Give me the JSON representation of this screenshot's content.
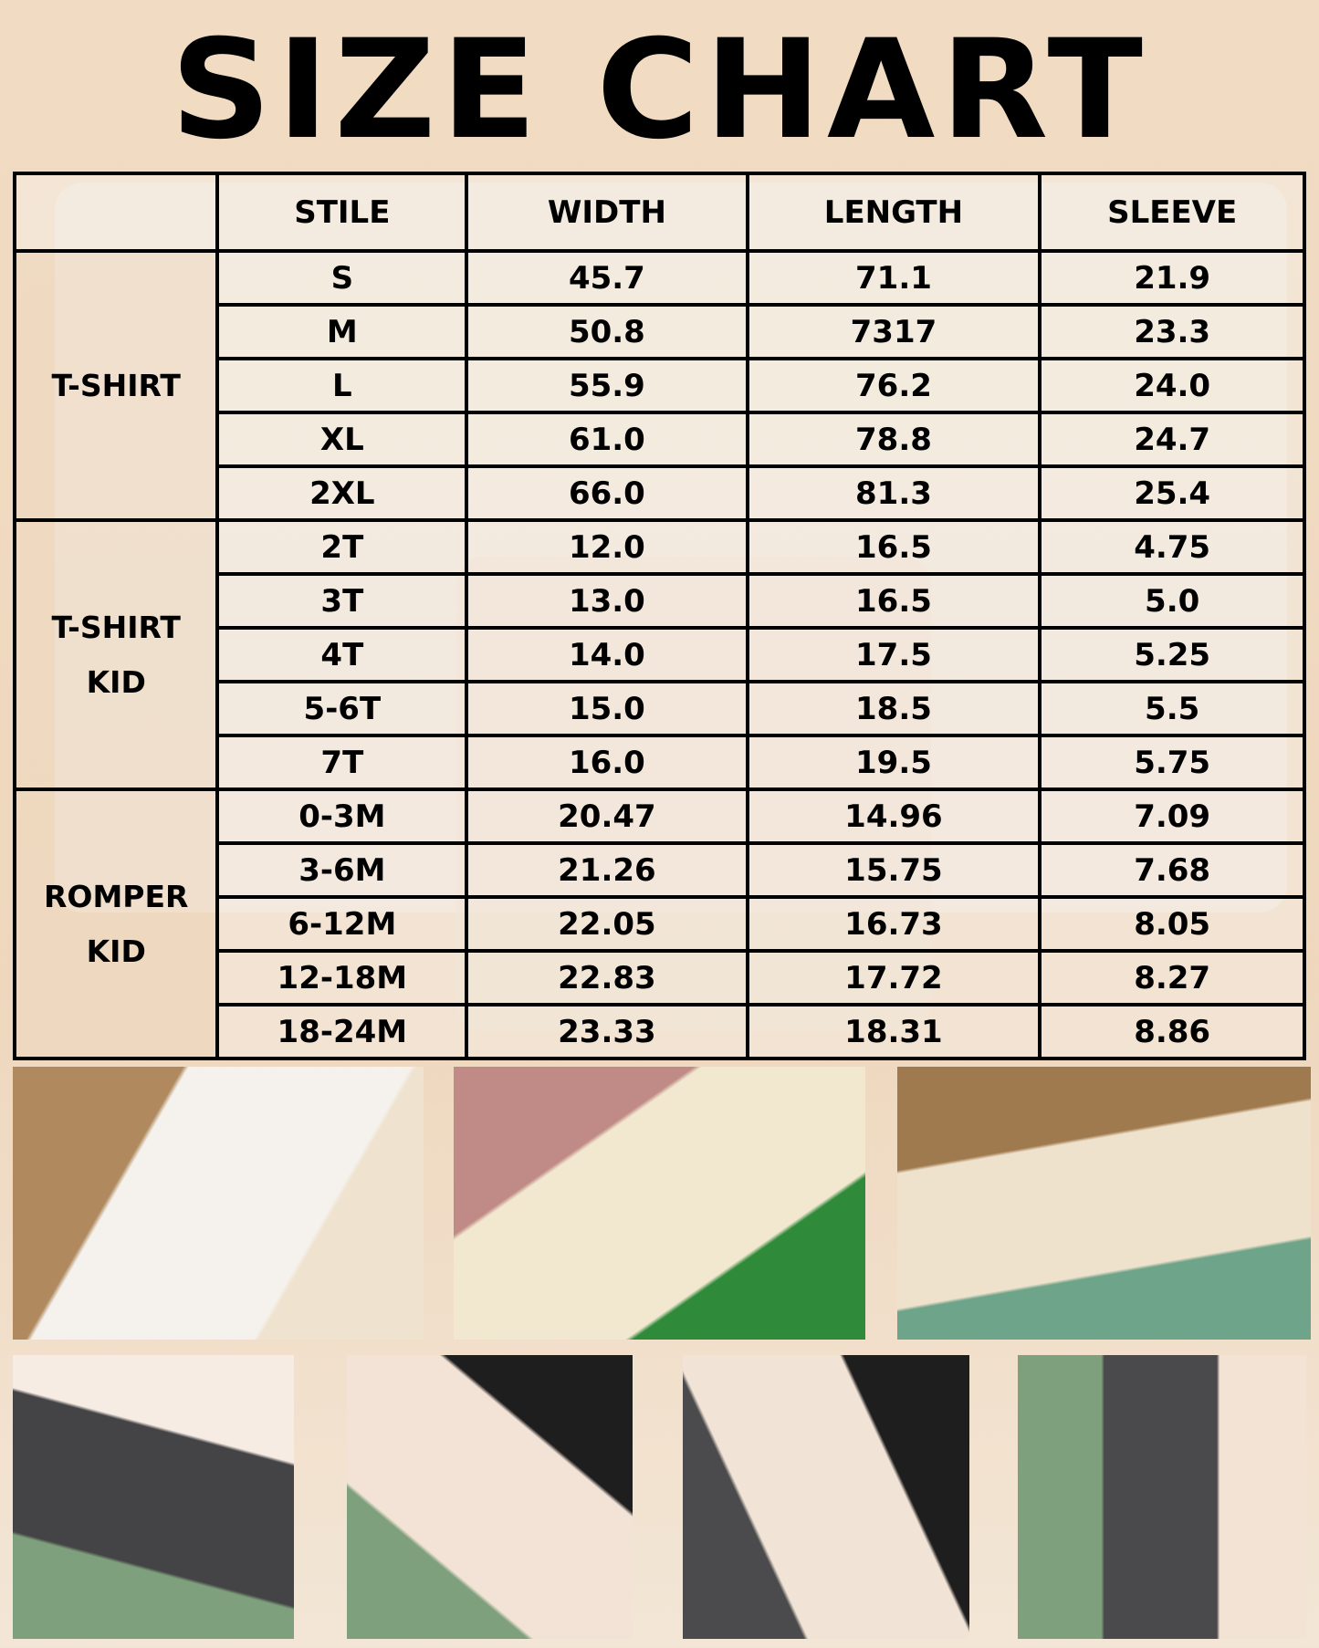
{
  "title": "SIZE CHART",
  "table": {
    "headers": [
      "",
      "STILE",
      "WIDTH",
      "LENGTH",
      "SLEEVE"
    ],
    "groups": [
      {
        "label": "T-SHIRT",
        "rows": [
          [
            "S",
            "45.7",
            "71.1",
            "21.9"
          ],
          [
            "M",
            "50.8",
            "7317",
            "23.3"
          ],
          [
            "L",
            "55.9",
            "76.2",
            "24.0"
          ],
          [
            "XL",
            "61.0",
            "78.8",
            "24.7"
          ],
          [
            "2XL",
            "66.0",
            "81.3",
            "25.4"
          ]
        ]
      },
      {
        "label": "T-SHIRT KID",
        "rows": [
          [
            "2T",
            "12.0",
            "16.5",
            "4.75"
          ],
          [
            "3T",
            "13.0",
            "16.5",
            "5.0"
          ],
          [
            "4T",
            "14.0",
            "17.5",
            "5.25"
          ],
          [
            "5-6T",
            "15.0",
            "18.5",
            "5.5"
          ],
          [
            "7T",
            "16.0",
            "19.5",
            "5.75"
          ]
        ]
      },
      {
        "label": "ROMPER KID",
        "rows": [
          [
            "0-3M",
            "20.47",
            "14.96",
            "7.09"
          ],
          [
            "3-6M",
            "21.26",
            "15.75",
            "7.68"
          ],
          [
            "6-12M",
            "22.05",
            "16.73",
            "8.05"
          ],
          [
            "12-18M",
            "22.83",
            "17.72",
            "8.27"
          ],
          [
            "18-24M",
            "23.33",
            "18.31",
            "8.86"
          ]
        ]
      }
    ]
  },
  "photos": [
    {
      "name": "photo-tshirts-rainbow",
      "colors": [
        "#b08a5e",
        "#f5f2ee",
        "#efe3cf"
      ]
    },
    {
      "name": "photo-rompers-shamrock",
      "colors": [
        "#c08a86",
        "#f1e8cf",
        "#2f8a3a"
      ]
    },
    {
      "name": "photo-cream-tshirt-wicker",
      "colors": [
        "#a07a4f",
        "#efe2cc",
        "#6ea58a"
      ]
    },
    {
      "name": "photo-stack-eucalyptus-1",
      "colors": [
        "#f6ece4",
        "#444446",
        "#7fa07c"
      ]
    },
    {
      "name": "photo-stack-eucalyptus-2",
      "colors": [
        "#1e1e1f",
        "#f3e3d6",
        "#7fa07c"
      ]
    },
    {
      "name": "photo-stack-eucalyptus-3",
      "colors": [
        "#1e1e1f",
        "#f1e3d5",
        "#4b4b4d"
      ]
    },
    {
      "name": "photo-stack-eucalyptus-4",
      "colors": [
        "#f3e3d4",
        "#4a4a4c",
        "#7fa07c"
      ]
    }
  ]
}
